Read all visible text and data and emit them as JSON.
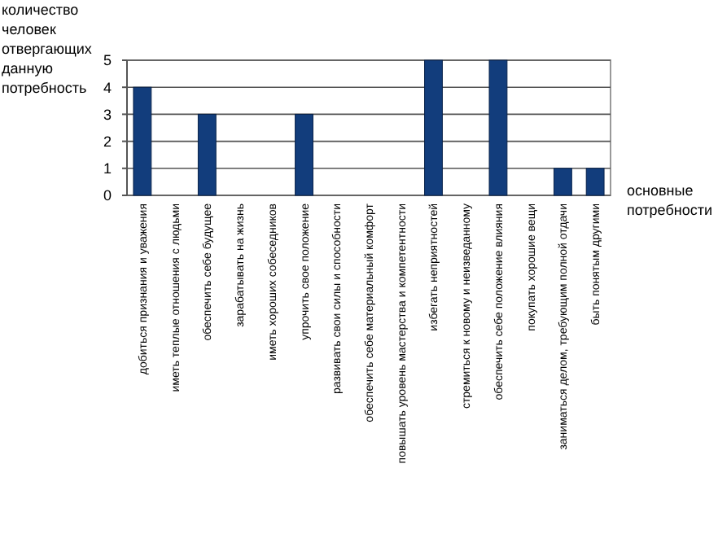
{
  "chart_data": {
    "type": "bar",
    "ylabel": "количество человек отвергающих данную потребность",
    "xlabel": "основные потребности",
    "categories": [
      "добиться признания и уважения",
      "иметь теплые отношения с людьми",
      "обеспечить себе будущее",
      "зарабатывать на жизнь",
      "иметь хороших собеседников",
      "упрочить свое положение",
      "развивать свои силы и способности",
      "обеспечить себе материальный комфорт",
      "повышать уровень мастерства и компетентности",
      "избегать неприятностей",
      "стремиться к новому и неизведанному",
      "обеспечить себе положение влияния",
      "покупать хорошие вещи",
      "заниматься делом, требующим полной отдачи",
      "быть понятым другими"
    ],
    "values": [
      4,
      0,
      3,
      0,
      0,
      3,
      0,
      0,
      0,
      5,
      0,
      5,
      0,
      1,
      1
    ],
    "color": "#123d7c",
    "ylim": [
      0,
      5
    ],
    "yticks": [
      0,
      1,
      2,
      3,
      4,
      5
    ],
    "grid": "y"
  }
}
